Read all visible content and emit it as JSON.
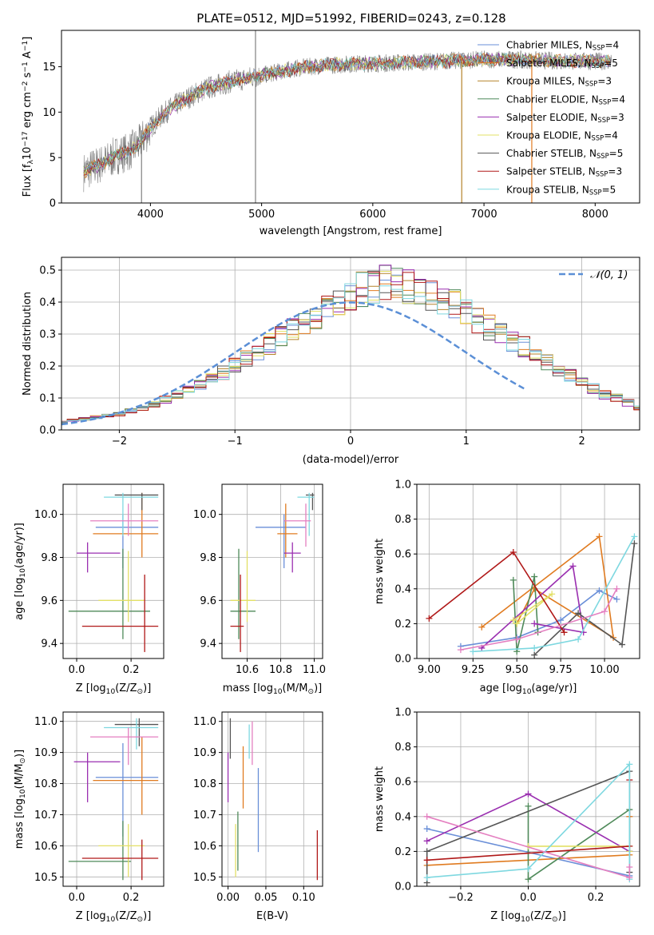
{
  "figure_title": "PLATE=0512, MJD=51992, FIBERID=0243, z=0.128",
  "colors": {
    "Chabrier MILES": "#6a8fd8",
    "Salpeter MILES": "#e07b20",
    "Kroupa MILES": "#b5832a",
    "Chabrier ELODIE": "#4f8a5a",
    "Salpeter ELODIE": "#9a2fb0",
    "Kroupa ELODIE": "#e3e066",
    "Chabrier STELIB": "#555555",
    "Salpeter STELIB": "#b01818",
    "Kroupa STELIB": "#7ed8e0",
    "pink": "#e47fc0",
    "data": "#808080",
    "gaussian": "#5b8fd6"
  },
  "chart_data": [
    {
      "id": "spectrum",
      "type": "line",
      "xlabel": "wavelength [Angstrom, rest frame]",
      "ylabel": "Flux [f$_\\lambda$10$^{-17}$ erg cm$^{-2}$ s$^{-1}$ A$^{-1}$]",
      "ylabel_main": "Flux [f",
      "ylabel_sub1": "λ",
      "ylabel_mid": "10",
      "ylabel_sup1": "−17",
      "ylabel_mid2": " erg cm",
      "ylabel_sup2": "−2",
      "ylabel_mid3": " s",
      "ylabel_sup3": "−1",
      "ylabel_mid4": " A",
      "ylabel_sup4": "−1",
      "ylabel_end": "]",
      "xlim": [
        3200,
        8400
      ],
      "ylim": [
        0,
        19
      ],
      "xticks": [
        4000,
        5000,
        6000,
        7000,
        8000
      ],
      "yticks": [
        0,
        5,
        10,
        15
      ],
      "continuum_x": [
        3400,
        3500,
        3600,
        3700,
        3800,
        3900,
        4000,
        4100,
        4200,
        4300,
        4400,
        4500,
        4700,
        4900,
        5100,
        5300,
        5500,
        5800,
        6100,
        6400,
        6600,
        6800,
        7000,
        7200,
        7500,
        7800,
        8100
      ],
      "continuum_y": [
        3.4,
        4.0,
        4.5,
        5.3,
        5.6,
        6.5,
        8.3,
        9.6,
        10.6,
        11.3,
        12.0,
        12.6,
        13.3,
        13.8,
        14.3,
        14.8,
        15.1,
        15.3,
        15.4,
        15.5,
        15.6,
        15.7,
        15.8,
        15.8,
        15.7,
        15.6,
        15.6
      ],
      "spikes": [
        {
          "x": 4945,
          "ymin": 0,
          "ymax": 19
        },
        {
          "x": 6800,
          "ymin": 0,
          "ymax": 16.2
        },
        {
          "x": 7430,
          "ymin": 0,
          "ymax": 16.2
        },
        {
          "x": 3920,
          "ymin": 0,
          "ymax": 8
        }
      ],
      "legend": [
        {
          "name": "Chabrier MILES",
          "N": "4"
        },
        {
          "name": "Salpeter MILES",
          "N": "5"
        },
        {
          "name": "Kroupa MILES",
          "N": "3"
        },
        {
          "name": "Chabrier ELODIE",
          "N": "4"
        },
        {
          "name": "Salpeter ELODIE",
          "N": "3"
        },
        {
          "name": "Kroupa ELODIE",
          "N": "4"
        },
        {
          "name": "Chabrier STELIB",
          "N": "5"
        },
        {
          "name": "Salpeter STELIB",
          "N": "3"
        },
        {
          "name": "Kroupa STELIB",
          "N": "5"
        }
      ],
      "legend_subscript": "SSP",
      "legend_n_prefix": ", N"
    },
    {
      "id": "residuals",
      "type": "histogram",
      "xlabel": "(data-model)/error",
      "ylabel": "Normed distribution",
      "xlim": [
        -2.5,
        2.5
      ],
      "ylim": [
        0,
        0.54
      ],
      "xticks": [
        -2,
        -1,
        0,
        1,
        2
      ],
      "yticks": [
        0.0,
        0.1,
        0.2,
        0.3,
        0.4,
        0.5
      ],
      "grid": true,
      "bin_width": 0.1,
      "base_heights": [
        0.025,
        0.03,
        0.035,
        0.04,
        0.045,
        0.05,
        0.06,
        0.07,
        0.08,
        0.095,
        0.11,
        0.125,
        0.14,
        0.16,
        0.18,
        0.2,
        0.22,
        0.245,
        0.27,
        0.3,
        0.32,
        0.34,
        0.36,
        0.38,
        0.4,
        0.42,
        0.44,
        0.45,
        0.46,
        0.46,
        0.45,
        0.43,
        0.42,
        0.4,
        0.39,
        0.37,
        0.34,
        0.32,
        0.3,
        0.28,
        0.26,
        0.23,
        0.21,
        0.19,
        0.17,
        0.15,
        0.13,
        0.11,
        0.1,
        0.085,
        0.07
      ],
      "gaussian_label": "𝒩(0, 1)",
      "legend_location": "upper right"
    },
    {
      "id": "age_vs_Z",
      "type": "errorbar",
      "xlabel": "Z [log",
      "xlabel_sub": "10",
      "xlabel_tail": "(Z/Z",
      "xlabel_sun": "⊙",
      "xlabel_end": ")]",
      "ylabel": "age  [log",
      "ylabel_sub": "10",
      "ylabel_tail": "(age/yr)]",
      "xlim": [
        -0.05,
        0.32
      ],
      "ylim": [
        9.33,
        10.14
      ],
      "xticks": [
        0.0,
        0.2
      ],
      "yticks": [
        9.4,
        9.6,
        9.8,
        10.0
      ],
      "points": [
        {
          "c": "Chabrier MILES",
          "x": 0.17,
          "xlo": 0.07,
          "xhi": 0.3,
          "y": 9.94,
          "ylo": 9.75,
          "yhi": 10.0
        },
        {
          "c": "Salpeter MILES",
          "x": 0.24,
          "xlo": 0.06,
          "xhi": 0.3,
          "y": 9.91,
          "ylo": 9.8,
          "yhi": 10.1
        },
        {
          "c": "Chabrier ELODIE",
          "x": 0.17,
          "xlo": -0.03,
          "xhi": 0.27,
          "y": 9.55,
          "ylo": 9.42,
          "yhi": 9.84
        },
        {
          "c": "Salpeter ELODIE",
          "x": 0.04,
          "xlo": 0.0,
          "xhi": 0.16,
          "y": 9.82,
          "ylo": 9.73,
          "yhi": 9.87
        },
        {
          "c": "Kroupa ELODIE",
          "x": 0.19,
          "xlo": 0.08,
          "xhi": 0.25,
          "y": 9.6,
          "ylo": 9.5,
          "yhi": 9.83
        },
        {
          "c": "Chabrier STELIB",
          "x": 0.24,
          "xlo": 0.14,
          "xhi": 0.3,
          "y": 10.09,
          "ylo": 10.02,
          "yhi": 10.1
        },
        {
          "c": "Salpeter STELIB",
          "x": 0.25,
          "xlo": 0.02,
          "xhi": 0.3,
          "y": 9.48,
          "ylo": 9.36,
          "yhi": 9.72
        },
        {
          "c": "Kroupa STELIB",
          "x": 0.17,
          "xlo": 0.1,
          "xhi": 0.3,
          "y": 10.08,
          "ylo": 9.9,
          "yhi": 10.1
        },
        {
          "c": "pink",
          "x": 0.19,
          "xlo": 0.05,
          "xhi": 0.3,
          "y": 9.97,
          "ylo": 9.9,
          "yhi": 10.05
        }
      ]
    },
    {
      "id": "age_vs_mass",
      "type": "errorbar",
      "xlabel": "mass [log",
      "xlabel_sub": "10",
      "xlabel_tail": "(M/M",
      "xlabel_sun": "⊙",
      "xlabel_end": ")]",
      "xlim": [
        10.45,
        11.05
      ],
      "ylim": [
        9.33,
        10.14
      ],
      "xticks": [
        10.6,
        10.8,
        11.0
      ],
      "yticks": [
        9.4,
        9.6,
        9.8,
        10.0
      ],
      "points": [
        {
          "c": "Chabrier MILES",
          "x": 10.82,
          "xlo": 10.65,
          "xhi": 10.95,
          "y": 9.94,
          "ylo": 9.75,
          "yhi": 10.0
        },
        {
          "c": "Salpeter MILES",
          "x": 10.83,
          "xlo": 10.78,
          "xhi": 10.9,
          "y": 9.91,
          "ylo": 9.8,
          "yhi": 10.05
        },
        {
          "c": "Chabrier ELODIE",
          "x": 10.55,
          "xlo": 10.5,
          "xhi": 10.65,
          "y": 9.55,
          "ylo": 9.42,
          "yhi": 9.84
        },
        {
          "c": "Salpeter ELODIE",
          "x": 10.87,
          "xlo": 10.82,
          "xhi": 10.92,
          "y": 9.82,
          "ylo": 9.73,
          "yhi": 9.87
        },
        {
          "c": "Kroupa ELODIE",
          "x": 10.6,
          "xlo": 10.5,
          "xhi": 10.65,
          "y": 9.6,
          "ylo": 9.5,
          "yhi": 9.83
        },
        {
          "c": "Chabrier STELIB",
          "x": 10.99,
          "xlo": 10.95,
          "xhi": 11.0,
          "y": 10.09,
          "ylo": 10.02,
          "yhi": 10.1
        },
        {
          "c": "Salpeter STELIB",
          "x": 10.56,
          "xlo": 10.5,
          "xhi": 10.58,
          "y": 9.48,
          "ylo": 9.36,
          "yhi": 9.72
        },
        {
          "c": "Kroupa STELIB",
          "x": 10.97,
          "xlo": 10.9,
          "xhi": 11.0,
          "y": 10.08,
          "ylo": 9.9,
          "yhi": 10.1
        },
        {
          "c": "pink",
          "x": 10.95,
          "xlo": 10.82,
          "xhi": 10.98,
          "y": 9.97,
          "ylo": 9.85,
          "yhi": 10.05
        }
      ]
    },
    {
      "id": "mass_weight_vs_age",
      "type": "line",
      "xlabel": "age  [log",
      "xlabel_sub": "10",
      "xlabel_tail": "(age/yr)]",
      "ylabel": "mass weight",
      "xlim": [
        8.93,
        10.2
      ],
      "ylim": [
        0,
        1.0
      ],
      "xticks": [
        9.0,
        9.25,
        9.5,
        9.75,
        10.0
      ],
      "yticks": [
        0.0,
        0.2,
        0.4,
        0.6,
        0.8,
        1.0
      ],
      "series": [
        {
          "c": "Chabrier MILES",
          "x": [
            9.18,
            9.5,
            9.75,
            9.97,
            10.07
          ],
          "y": [
            0.07,
            0.12,
            0.22,
            0.39,
            0.34
          ]
        },
        {
          "c": "Salpeter MILES",
          "x": [
            9.3,
            9.97,
            10.05,
            9.6,
            9.5
          ],
          "y": [
            0.18,
            0.7,
            0.12,
            0.4,
            0.2
          ]
        },
        {
          "c": "Chabrier ELODIE",
          "x": [
            9.48,
            9.5,
            9.6,
            9.62
          ],
          "y": [
            0.45,
            0.04,
            0.47,
            0.15
          ]
        },
        {
          "c": "Salpeter ELODIE",
          "x": [
            9.3,
            9.82,
            9.88,
            9.6
          ],
          "y": [
            0.06,
            0.53,
            0.15,
            0.2
          ]
        },
        {
          "c": "Kroupa ELODIE",
          "x": [
            9.48,
            9.7,
            9.5
          ],
          "y": [
            0.22,
            0.37,
            0.2
          ]
        },
        {
          "c": "Chabrier STELIB",
          "x": [
            9.6,
            9.85,
            10.1,
            10.17
          ],
          "y": [
            0.02,
            0.26,
            0.08,
            0.66
          ]
        },
        {
          "c": "Salpeter STELIB",
          "x": [
            9.0,
            9.48,
            9.77
          ],
          "y": [
            0.23,
            0.61,
            0.15
          ]
        },
        {
          "c": "Kroupa STELIB",
          "x": [
            9.25,
            9.6,
            9.85,
            10.17
          ],
          "y": [
            0.04,
            0.06,
            0.11,
            0.7
          ]
        },
        {
          "c": "pink",
          "x": [
            9.18,
            9.5,
            10.0,
            10.07
          ],
          "y": [
            0.05,
            0.11,
            0.27,
            0.4
          ]
        }
      ]
    },
    {
      "id": "mass_vs_Z",
      "type": "errorbar",
      "xlabel": "Z [log",
      "xlabel_sub": "10",
      "xlabel_tail": "(Z/Z",
      "xlabel_sun": "⊙",
      "xlabel_end": ")]",
      "ylabel": "mass [log",
      "ylabel_sub": "10",
      "ylabel_tail": "(M/M",
      "ylabel_sun": "⊙",
      "ylabel_end": ")]",
      "xlim": [
        -0.05,
        0.32
      ],
      "ylim": [
        10.47,
        11.03
      ],
      "xticks": [
        0.0,
        0.2
      ],
      "yticks": [
        10.5,
        10.6,
        10.7,
        10.8,
        10.9,
        11.0
      ],
      "points": [
        {
          "c": "Chabrier MILES",
          "x": 0.17,
          "xlo": 0.07,
          "xhi": 0.3,
          "y": 10.82,
          "ylo": 10.63,
          "yhi": 10.93
        },
        {
          "c": "Salpeter MILES",
          "x": 0.24,
          "xlo": 0.06,
          "xhi": 0.3,
          "y": 10.81,
          "ylo": 10.7,
          "yhi": 10.95
        },
        {
          "c": "Chabrier ELODIE",
          "x": 0.17,
          "xlo": -0.03,
          "xhi": 0.2,
          "y": 10.55,
          "ylo": 10.49,
          "yhi": 10.68
        },
        {
          "c": "Salpeter ELODIE",
          "x": 0.04,
          "xlo": -0.01,
          "xhi": 0.16,
          "y": 10.87,
          "ylo": 10.74,
          "yhi": 10.9
        },
        {
          "c": "Kroupa ELODIE",
          "x": 0.19,
          "xlo": 0.08,
          "xhi": 0.25,
          "y": 10.6,
          "ylo": 10.5,
          "yhi": 10.67
        },
        {
          "c": "Chabrier STELIB",
          "x": 0.23,
          "xlo": 0.14,
          "xhi": 0.3,
          "y": 10.99,
          "ylo": 10.92,
          "yhi": 11.01
        },
        {
          "c": "Salpeter STELIB",
          "x": 0.24,
          "xlo": 0.02,
          "xhi": 0.3,
          "y": 10.56,
          "ylo": 10.49,
          "yhi": 10.62
        },
        {
          "c": "Kroupa STELIB",
          "x": 0.22,
          "xlo": 0.1,
          "xhi": 0.3,
          "y": 10.98,
          "ylo": 10.91,
          "yhi": 11.01
        },
        {
          "c": "pink",
          "x": 0.19,
          "xlo": 0.05,
          "xhi": 0.3,
          "y": 10.95,
          "ylo": 10.86,
          "yhi": 10.98
        }
      ]
    },
    {
      "id": "mass_vs_EBV",
      "type": "errorbar",
      "xlabel": "E(B-V)",
      "xlim": [
        -0.008,
        0.125
      ],
      "ylim": [
        10.47,
        11.03
      ],
      "xticks": [
        0.0,
        0.05,
        0.1
      ],
      "yticks": [
        10.5,
        10.6,
        10.7,
        10.8,
        10.9,
        11.0
      ],
      "points": [
        {
          "c": "Chabrier MILES",
          "x": 0.04,
          "y": 10.8,
          "ylo": 10.58,
          "yhi": 10.85
        },
        {
          "c": "Salpeter MILES",
          "x": 0.02,
          "y": 10.82,
          "ylo": 10.72,
          "yhi": 10.92
        },
        {
          "c": "Chabrier ELODIE",
          "x": 0.013,
          "y": 10.6,
          "ylo": 10.52,
          "yhi": 10.71
        },
        {
          "c": "Salpeter ELODIE",
          "x": 0.0,
          "y": 10.85,
          "ylo": 10.74,
          "yhi": 10.9
        },
        {
          "c": "Kroupa ELODIE",
          "x": 0.01,
          "y": 10.58,
          "ylo": 10.5,
          "yhi": 10.67
        },
        {
          "c": "Chabrier STELIB",
          "x": 0.003,
          "y": 10.98,
          "ylo": 10.88,
          "yhi": 11.01
        },
        {
          "c": "Salpeter STELIB",
          "x": 0.118,
          "y": 10.6,
          "ylo": 10.49,
          "yhi": 10.65
        },
        {
          "c": "Kroupa STELIB",
          "x": 0.028,
          "y": 10.94,
          "ylo": 10.88,
          "yhi": 10.99
        },
        {
          "c": "pink",
          "x": 0.032,
          "y": 10.95,
          "ylo": 10.86,
          "yhi": 11.0
        }
      ]
    },
    {
      "id": "mass_weight_vs_Z",
      "type": "line",
      "xlabel": "Z [log",
      "xlabel_sub": "10",
      "xlabel_tail": "(Z/Z",
      "xlabel_sun": "⊙",
      "xlabel_end": ")]",
      "ylabel": "mass weight",
      "xlim": [
        -0.33,
        0.33
      ],
      "ylim": [
        0,
        1.0
      ],
      "xticks": [
        -0.2,
        0.0,
        0.2
      ],
      "yticks": [
        0.0,
        0.2,
        0.4,
        0.6,
        0.8,
        1.0
      ],
      "series": [
        {
          "c": "Chabrier MILES",
          "x": [
            -0.3,
            0.3,
            0.3
          ],
          "y": [
            0.33,
            0.06,
            0.2
          ]
        },
        {
          "c": "Salpeter MILES",
          "x": [
            -0.3,
            0.3,
            0.3
          ],
          "y": [
            0.12,
            0.18,
            0.4
          ]
        },
        {
          "c": "Chabrier ELODIE",
          "x": [
            0.0,
            0.0,
            0.3,
            0.3
          ],
          "y": [
            0.46,
            0.04,
            0.44,
            0.2
          ]
        },
        {
          "c": "Salpeter ELODIE",
          "x": [
            -0.3,
            0.0,
            0.3
          ],
          "y": [
            0.26,
            0.53,
            0.2
          ]
        },
        {
          "c": "Kroupa ELODIE",
          "x": [
            0.0,
            0.3,
            0.3
          ],
          "y": [
            0.23,
            0.23,
            0.2
          ]
        },
        {
          "c": "Chabrier STELIB",
          "x": [
            -0.3,
            -0.3,
            0.3,
            0.3
          ],
          "y": [
            0.02,
            0.2,
            0.66,
            0.08
          ]
        },
        {
          "c": "Salpeter STELIB",
          "x": [
            -0.3,
            0.3,
            0.3
          ],
          "y": [
            0.15,
            0.23,
            0.61
          ]
        },
        {
          "c": "Kroupa STELIB",
          "x": [
            -0.3,
            0.0,
            0.3,
            0.3
          ],
          "y": [
            0.05,
            0.1,
            0.7,
            0.04
          ]
        },
        {
          "c": "pink",
          "x": [
            -0.3,
            0.3,
            0.3
          ],
          "y": [
            0.4,
            0.05,
            0.11
          ]
        }
      ]
    }
  ]
}
